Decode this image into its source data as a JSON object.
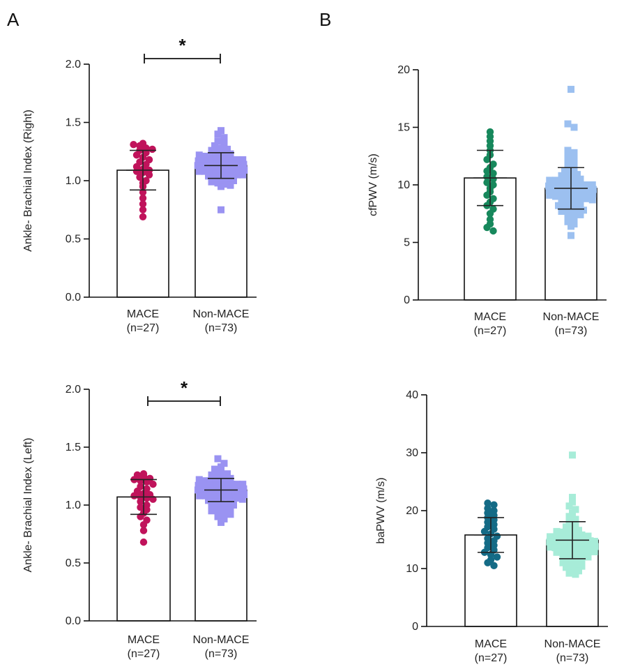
{
  "panel_labels": [
    "A",
    "B"
  ],
  "chart_data": [
    {
      "type": "bar",
      "panel": "A",
      "ylabel": "Ankle- Brachial Index (Right)",
      "ylim": [
        0,
        2.0
      ],
      "yticks": [
        "0.0",
        "0.5",
        "1.0",
        "1.5",
        "2.0"
      ],
      "categories": [
        {
          "name": "MACE",
          "n": "(n=27)"
        },
        {
          "name": "Non-MACE",
          "n": "(n=73)"
        }
      ],
      "series": [
        {
          "mean": 1.09,
          "sd": 0.17,
          "marker": "circle",
          "color": "#c0135b",
          "points": [
            1.32,
            1.31,
            1.3,
            1.28,
            1.27,
            1.26,
            1.24,
            1.22,
            1.2,
            1.18,
            1.16,
            1.14,
            1.12,
            1.1,
            1.09,
            1.08,
            1.07,
            1.05,
            1.03,
            1.0,
            0.98,
            0.95,
            0.9,
            0.85,
            0.8,
            0.75,
            0.69
          ]
        },
        {
          "mean": 1.13,
          "sd": 0.11,
          "marker": "square",
          "color": "#9a93f2",
          "points": [
            1.43,
            1.4,
            1.37,
            1.34,
            1.32,
            1.3,
            1.28,
            1.27,
            1.26,
            1.25,
            1.24,
            1.23,
            1.22,
            1.21,
            1.2,
            1.2,
            1.19,
            1.18,
            1.18,
            1.17,
            1.17,
            1.16,
            1.16,
            1.15,
            1.15,
            1.15,
            1.14,
            1.14,
            1.14,
            1.13,
            1.13,
            1.13,
            1.13,
            1.12,
            1.12,
            1.12,
            1.12,
            1.11,
            1.11,
            1.11,
            1.1,
            1.1,
            1.1,
            1.09,
            1.09,
            1.08,
            1.08,
            1.07,
            1.07,
            1.06,
            1.06,
            1.05,
            1.05,
            1.04,
            1.03,
            1.02,
            1.01,
            1.0,
            0.99,
            0.98,
            0.97,
            0.96,
            0.95,
            1.16,
            1.14,
            1.12,
            1.1,
            1.18,
            1.2,
            1.08,
            1.15,
            1.13,
            0.75
          ]
        }
      ],
      "significance": "*"
    },
    {
      "type": "bar",
      "panel": "B",
      "ylabel": "cfPWV (m/s)",
      "ylim": [
        0,
        20
      ],
      "yticks": [
        "0",
        "5",
        "10",
        "15",
        "20"
      ],
      "categories": [
        {
          "name": "MACE",
          "n": "(n=27)"
        },
        {
          "name": "Non-MACE",
          "n": "(n=73)"
        }
      ],
      "series": [
        {
          "mean": 10.6,
          "sd": 2.4,
          "marker": "circle",
          "color": "#17885c",
          "points": [
            14.6,
            14.2,
            13.8,
            13.4,
            13.0,
            12.6,
            12.2,
            11.8,
            11.5,
            11.2,
            11.0,
            10.7,
            10.5,
            10.2,
            10.0,
            9.7,
            9.4,
            9.1,
            8.8,
            8.5,
            8.2,
            7.9,
            7.5,
            7.0,
            6.6,
            6.3,
            6.0
          ]
        },
        {
          "mean": 9.7,
          "sd": 1.8,
          "marker": "square",
          "color": "#9cc0f0",
          "points": [
            18.3,
            15.3,
            15.0,
            13.0,
            12.8,
            12.5,
            12.3,
            12.0,
            11.8,
            11.6,
            11.4,
            11.2,
            11.0,
            10.9,
            10.8,
            10.7,
            10.6,
            10.5,
            10.4,
            10.3,
            10.2,
            10.1,
            10.0,
            10.0,
            9.9,
            9.9,
            9.8,
            9.8,
            9.7,
            9.7,
            9.6,
            9.6,
            9.5,
            9.5,
            9.4,
            9.4,
            9.3,
            9.3,
            9.2,
            9.2,
            9.1,
            9.0,
            9.0,
            8.9,
            8.8,
            8.8,
            8.7,
            8.6,
            8.5,
            8.4,
            8.3,
            8.2,
            8.1,
            8.0,
            7.9,
            7.8,
            7.7,
            7.6,
            7.5,
            7.4,
            7.2,
            7.0,
            6.8,
            6.6,
            6.4,
            10.1,
            9.6,
            9.4,
            10.4,
            9.8,
            9.9,
            8.9,
            5.6
          ]
        }
      ]
    },
    {
      "type": "bar",
      "panel": "A",
      "ylabel": "Ankle- Brachial Index (Left)",
      "ylim": [
        0,
        2.0
      ],
      "yticks": [
        "0.0",
        "0.5",
        "1.0",
        "1.5",
        "2.0"
      ],
      "categories": [
        {
          "name": "MACE",
          "n": "(n=27)"
        },
        {
          "name": "Non-MACE",
          "n": "(n=73)"
        }
      ],
      "series": [
        {
          "mean": 1.07,
          "sd": 0.15,
          "marker": "circle",
          "color": "#c0135b",
          "points": [
            1.27,
            1.26,
            1.25,
            1.23,
            1.22,
            1.21,
            1.2,
            1.18,
            1.16,
            1.14,
            1.12,
            1.1,
            1.09,
            1.08,
            1.07,
            1.06,
            1.05,
            1.03,
            1.0,
            0.98,
            0.96,
            0.93,
            0.9,
            0.87,
            0.83,
            0.78,
            0.68
          ]
        },
        {
          "mean": 1.13,
          "sd": 0.1,
          "marker": "square",
          "color": "#9a93f2",
          "points": [
            1.4,
            1.36,
            1.33,
            1.31,
            1.29,
            1.27,
            1.26,
            1.25,
            1.24,
            1.23,
            1.22,
            1.21,
            1.2,
            1.2,
            1.19,
            1.18,
            1.18,
            1.17,
            1.17,
            1.16,
            1.16,
            1.15,
            1.15,
            1.15,
            1.14,
            1.14,
            1.14,
            1.13,
            1.13,
            1.13,
            1.12,
            1.12,
            1.12,
            1.11,
            1.11,
            1.11,
            1.1,
            1.1,
            1.1,
            1.09,
            1.09,
            1.08,
            1.08,
            1.07,
            1.07,
            1.06,
            1.06,
            1.05,
            1.04,
            1.03,
            1.02,
            1.01,
            1.0,
            0.99,
            0.98,
            0.97,
            0.96,
            0.95,
            0.94,
            0.93,
            0.92,
            0.9,
            0.88,
            1.16,
            1.14,
            1.12,
            1.1,
            1.18,
            1.2,
            1.08,
            1.15,
            1.13,
            0.85
          ]
        }
      ],
      "significance": "*"
    },
    {
      "type": "bar",
      "panel": "B",
      "ylabel": "baPWV (m/s)",
      "ylim": [
        0,
        40
      ],
      "yticks": [
        "0",
        "10",
        "20",
        "30",
        "40"
      ],
      "categories": [
        {
          "name": "MACE",
          "n": "(n=27)"
        },
        {
          "name": "Non-MACE",
          "n": "(n=73)"
        }
      ],
      "series": [
        {
          "mean": 15.8,
          "sd": 3.0,
          "marker": "circle",
          "color": "#146b86",
          "points": [
            21.3,
            21.0,
            20.4,
            20.0,
            19.6,
            19.2,
            18.8,
            18.4,
            18.0,
            17.6,
            17.2,
            16.8,
            16.4,
            16.0,
            15.6,
            15.2,
            14.8,
            14.4,
            14.0,
            13.6,
            13.2,
            12.8,
            12.4,
            12.0,
            11.5,
            11.0,
            10.5
          ]
        },
        {
          "mean": 14.9,
          "sd": 3.2,
          "marker": "square",
          "color": "#a7ecd8",
          "points": [
            29.6,
            22.3,
            21.5,
            20.8,
            20.2,
            19.6,
            19.0,
            18.5,
            18.0,
            17.6,
            17.2,
            16.9,
            16.6,
            16.3,
            16.0,
            15.8,
            15.6,
            15.4,
            15.2,
            15.0,
            14.9,
            14.8,
            14.7,
            14.6,
            14.5,
            14.4,
            14.3,
            14.2,
            14.1,
            14.0,
            13.9,
            13.8,
            13.7,
            13.6,
            13.5,
            13.4,
            13.3,
            13.2,
            13.1,
            13.0,
            12.8,
            12.6,
            12.4,
            12.2,
            12.0,
            11.8,
            11.6,
            11.4,
            11.2,
            11.0,
            10.8,
            10.6,
            10.4,
            10.2,
            10.0,
            9.6,
            9.2,
            15.1,
            14.6,
            15.3,
            14.2,
            13.8,
            16.1,
            12.9,
            14.0,
            15.5,
            14.8,
            13.4,
            12.7,
            16.4,
            15.0,
            14.4,
            9.0
          ]
        }
      ]
    }
  ]
}
